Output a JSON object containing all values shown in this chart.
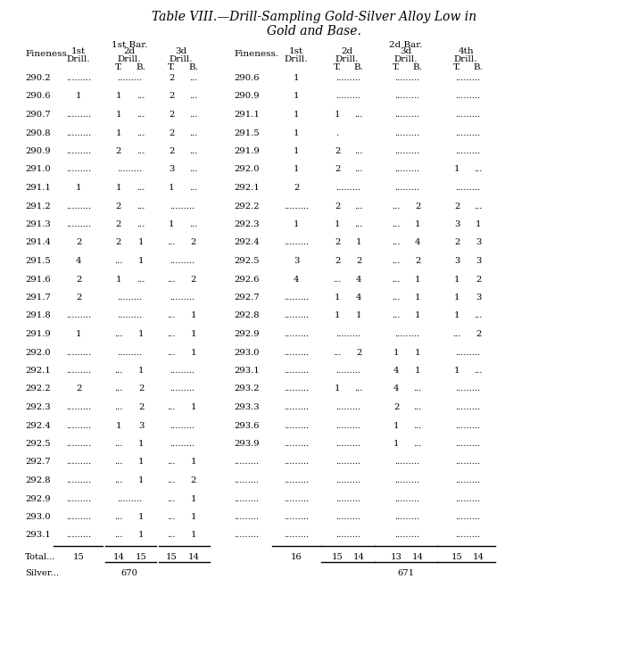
{
  "title_line1": "Table VIII.—Drill-Sampling Gold-Silver Alloy Low in",
  "title_line2": "Gold and Base.",
  "rows_left": [
    [
      "290.2",
      ".........",
      ".........",
      "2",
      "..."
    ],
    [
      "290.6",
      "1",
      "1",
      "...",
      "2",
      "..."
    ],
    [
      "290.7",
      ".........",
      "1",
      "...",
      "2",
      "..."
    ],
    [
      "290.8",
      ".........",
      "1",
      "...",
      "2",
      "..."
    ],
    [
      "290.9",
      ".........",
      "2",
      "...",
      "2",
      "..."
    ],
    [
      "291.0",
      ".........",
      ".........",
      "3",
      "..."
    ],
    [
      "291.1",
      "1",
      "1",
      "...",
      "1",
      "..."
    ],
    [
      "291.2",
      ".........",
      "2",
      "...",
      "........."
    ],
    [
      "291.3",
      ".........",
      "2",
      "...",
      "1",
      "..."
    ],
    [
      "291.4",
      "2",
      "2",
      "1",
      "...",
      "2"
    ],
    [
      "291.5",
      "4",
      "...",
      "1",
      "........."
    ],
    [
      "291.6",
      "2",
      "1",
      "...",
      "...",
      "2"
    ],
    [
      "291.7",
      "2",
      ".........",
      "........."
    ],
    [
      "291.8",
      ".........",
      ".........",
      "...",
      "1"
    ],
    [
      "291.9",
      "1",
      "...",
      "1",
      "...",
      "1"
    ],
    [
      "292.0",
      ".........",
      ".........",
      "...",
      "1"
    ],
    [
      "292.1",
      ".........",
      "...",
      "1",
      "........."
    ],
    [
      "292.2",
      "2",
      "...",
      "2",
      "........."
    ],
    [
      "292.3",
      ".........",
      "...",
      "2",
      "...",
      "1"
    ],
    [
      "292.4",
      ".........",
      "1",
      "3",
      "........."
    ],
    [
      "292.5",
      ".........",
      "...",
      "1",
      "........."
    ],
    [
      "292.7",
      ".........",
      "...",
      "1",
      "...",
      "1"
    ],
    [
      "292.8",
      ".........",
      "...",
      "1",
      "...",
      "2"
    ],
    [
      "292.9",
      ".........",
      ".........",
      "...",
      "1"
    ],
    [
      "293.0",
      ".........",
      "...",
      "1",
      "...",
      "1"
    ],
    [
      "293.1",
      ".........",
      "...",
      "1",
      "...",
      "1"
    ]
  ],
  "rows_right": [
    [
      "290.6",
      "1",
      ".........",
      ".........",
      "........."
    ],
    [
      "290.9",
      "1",
      ".........",
      ".........",
      "........."
    ],
    [
      "291.1",
      "1",
      "1",
      "...",
      ".........",
      "........."
    ],
    [
      "291.5",
      "1",
      ".",
      ".........",
      "........."
    ],
    [
      "291.9",
      "1",
      "2",
      "...",
      ".........",
      "........."
    ],
    [
      "292.0",
      "1",
      "2",
      "...",
      ".........",
      "1",
      "..."
    ],
    [
      "292.1",
      "2",
      ".........",
      ".........",
      "........."
    ],
    [
      "292.2",
      ".........",
      "2",
      "...",
      "...",
      "2",
      "2",
      "..."
    ],
    [
      "292.3",
      "1",
      "1",
      "...",
      "...",
      "1",
      "3",
      "1"
    ],
    [
      "292.4",
      ".........",
      "2",
      "1",
      "...",
      "4",
      "2",
      "3"
    ],
    [
      "292.5",
      "3",
      "2",
      "2",
      "...",
      "2",
      "3",
      "3"
    ],
    [
      "292.6",
      "4",
      "...",
      "4",
      "...",
      "1",
      "1",
      "2"
    ],
    [
      "292.7",
      ".........",
      "1",
      "4",
      "...",
      "1",
      "1",
      "3"
    ],
    [
      "292.8",
      ".........",
      "1",
      "1",
      "...",
      "1",
      "1",
      "..."
    ],
    [
      "292.9",
      ".........",
      ".........",
      ".........",
      "...",
      "2"
    ],
    [
      "293.0",
      ".........",
      "...",
      "2",
      "1",
      "1",
      "........."
    ],
    [
      "293.1",
      ".........",
      ".........",
      "4",
      "1",
      "1",
      "..."
    ],
    [
      "293.2",
      ".........",
      "1",
      "...",
      "4",
      "...",
      "........."
    ],
    [
      "293.3",
      ".........",
      ".........",
      "2",
      "...",
      "........."
    ],
    [
      "293.6",
      ".........",
      ".........",
      "1",
      "...",
      "........."
    ],
    [
      "293.9",
      ".........",
      ".........",
      "1",
      "...",
      "........."
    ],
    [
      ".........",
      ".........",
      ".........",
      ".........",
      "........."
    ],
    [
      ".........",
      ".........",
      ".........",
      ".........",
      "........."
    ],
    [
      ".........",
      ".........",
      ".........",
      ".........",
      "........."
    ],
    [
      ".........",
      ".........",
      ".........",
      ".........",
      "........."
    ],
    [
      ".........",
      ".........",
      ".........",
      ".........",
      "........."
    ]
  ]
}
